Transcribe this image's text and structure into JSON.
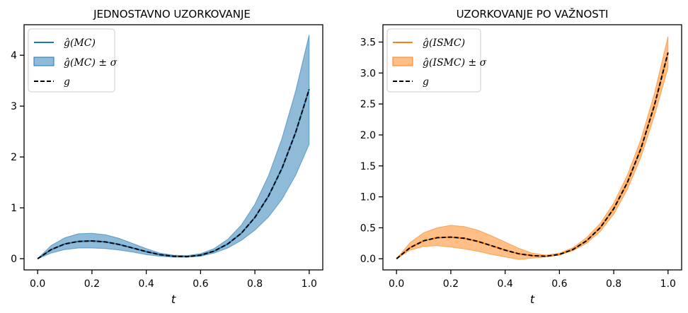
{
  "chart_data": [
    {
      "type": "line",
      "title": "JEDNOSTAVNO UZORKOVANJE",
      "xlabel": "t",
      "ylabel": "",
      "xlim": [
        -0.05,
        1.05
      ],
      "ylim": [
        -0.22,
        4.6
      ],
      "xticks": [
        0.0,
        0.2,
        0.4,
        0.6,
        0.8,
        1.0
      ],
      "xtick_labels": [
        "0.0",
        "0.2",
        "0.4",
        "0.6",
        "0.8",
        "1.0"
      ],
      "yticks": [
        0,
        1,
        2,
        3,
        4
      ],
      "ytick_labels": [
        "0",
        "1",
        "2",
        "3",
        "4"
      ],
      "grid": false,
      "legend_position": "top-left",
      "x": [
        0.0,
        0.05,
        0.1,
        0.15,
        0.2,
        0.25,
        0.3,
        0.35,
        0.4,
        0.45,
        0.5,
        0.55,
        0.6,
        0.65,
        0.7,
        0.75,
        0.8,
        0.85,
        0.9,
        0.95,
        1.0
      ],
      "series": [
        {
          "name": "ĝ(MC)",
          "role": "estimate",
          "color": "#1f77b4",
          "values": [
            0.0,
            0.18,
            0.29,
            0.34,
            0.35,
            0.33,
            0.28,
            0.21,
            0.14,
            0.08,
            0.05,
            0.04,
            0.07,
            0.15,
            0.29,
            0.5,
            0.81,
            1.23,
            1.78,
            2.48,
            3.33
          ]
        },
        {
          "name": "ĝ(MC) ± σ",
          "role": "band",
          "color": "#1f77b4",
          "alpha": 0.5,
          "lower": [
            0.0,
            0.11,
            0.18,
            0.21,
            0.21,
            0.2,
            0.17,
            0.13,
            0.08,
            0.05,
            0.03,
            0.03,
            0.05,
            0.11,
            0.21,
            0.36,
            0.56,
            0.82,
            1.17,
            1.64,
            2.25
          ],
          "upper": [
            0.0,
            0.26,
            0.41,
            0.49,
            0.5,
            0.47,
            0.4,
            0.3,
            0.2,
            0.11,
            0.07,
            0.06,
            0.1,
            0.2,
            0.38,
            0.66,
            1.07,
            1.63,
            2.37,
            3.29,
            4.4
          ]
        },
        {
          "name": "g",
          "role": "true",
          "color": "#000000",
          "dash": true,
          "values": [
            0.0,
            0.18,
            0.29,
            0.34,
            0.35,
            0.33,
            0.28,
            0.21,
            0.14,
            0.08,
            0.05,
            0.04,
            0.07,
            0.15,
            0.29,
            0.5,
            0.81,
            1.23,
            1.78,
            2.48,
            3.33
          ]
        }
      ]
    },
    {
      "type": "line",
      "title": "UZORKOVANJE PO VAŽNOSTI",
      "xlabel": "t",
      "ylabel": "",
      "xlim": [
        -0.05,
        1.05
      ],
      "ylim": [
        -0.18,
        3.78
      ],
      "xticks": [
        0.0,
        0.2,
        0.4,
        0.6,
        0.8,
        1.0
      ],
      "xtick_labels": [
        "0.0",
        "0.2",
        "0.4",
        "0.6",
        "0.8",
        "1.0"
      ],
      "yticks": [
        0.0,
        0.5,
        1.0,
        1.5,
        2.0,
        2.5,
        3.0,
        3.5
      ],
      "ytick_labels": [
        "0.0",
        "0.5",
        "1.0",
        "1.5",
        "2.0",
        "2.5",
        "3.0",
        "3.5"
      ],
      "grid": false,
      "legend_position": "top-left",
      "x": [
        0.0,
        0.05,
        0.1,
        0.15,
        0.2,
        0.25,
        0.3,
        0.35,
        0.4,
        0.45,
        0.5,
        0.55,
        0.6,
        0.65,
        0.7,
        0.75,
        0.8,
        0.85,
        0.9,
        0.95,
        1.0
      ],
      "series": [
        {
          "name": "ĝ(ISMC)",
          "role": "estimate",
          "color": "#ff7f0e",
          "values": [
            0.0,
            0.18,
            0.29,
            0.34,
            0.35,
            0.33,
            0.28,
            0.21,
            0.14,
            0.08,
            0.05,
            0.04,
            0.07,
            0.15,
            0.29,
            0.5,
            0.81,
            1.23,
            1.78,
            2.48,
            3.33
          ]
        },
        {
          "name": "ĝ(ISMC) ± σ",
          "role": "band",
          "color": "#ff7f0e",
          "alpha": 0.5,
          "lower": [
            0.0,
            0.14,
            0.2,
            0.21,
            0.19,
            0.16,
            0.12,
            0.07,
            0.03,
            -0.01,
            0.01,
            0.03,
            0.06,
            0.13,
            0.25,
            0.44,
            0.72,
            1.12,
            1.64,
            2.31,
            3.08
          ],
          "upper": [
            0.0,
            0.26,
            0.42,
            0.5,
            0.54,
            0.52,
            0.46,
            0.37,
            0.27,
            0.17,
            0.09,
            0.06,
            0.09,
            0.18,
            0.34,
            0.57,
            0.9,
            1.35,
            1.93,
            2.67,
            3.59
          ]
        },
        {
          "name": "g",
          "role": "true",
          "color": "#000000",
          "dash": true,
          "values": [
            0.0,
            0.18,
            0.29,
            0.34,
            0.35,
            0.33,
            0.28,
            0.21,
            0.14,
            0.08,
            0.05,
            0.04,
            0.07,
            0.15,
            0.29,
            0.5,
            0.81,
            1.23,
            1.78,
            2.48,
            3.33
          ]
        }
      ]
    }
  ]
}
